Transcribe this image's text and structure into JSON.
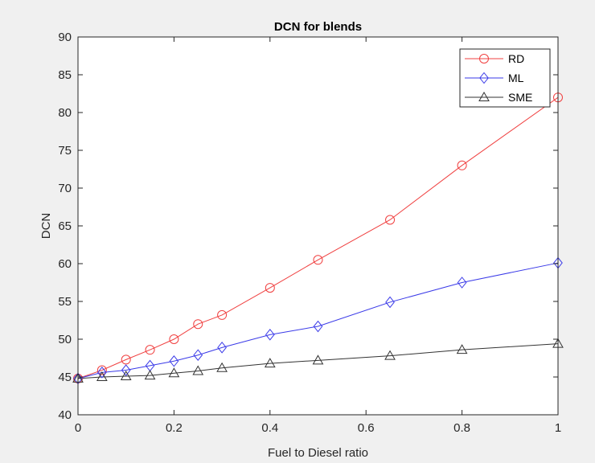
{
  "chart_data": {
    "type": "line",
    "title": "DCN for blends",
    "xlabel": "Fuel to Diesel ratio",
    "ylabel": "DCN",
    "xlim": [
      0,
      1
    ],
    "ylim": [
      40,
      90
    ],
    "xticks": [
      0,
      0.2,
      0.4,
      0.6,
      0.8,
      1
    ],
    "xtick_labels": [
      "0",
      "0.2",
      "0.4",
      "0.6",
      "0.8",
      "1"
    ],
    "yticks": [
      40,
      45,
      50,
      55,
      60,
      65,
      70,
      75,
      80,
      85,
      90
    ],
    "ytick_labels": [
      "40",
      "45",
      "50",
      "55",
      "60",
      "65",
      "70",
      "75",
      "80",
      "85",
      "90"
    ],
    "grid": false,
    "legend_position": "top-right",
    "x": [
      0,
      0.05,
      0.1,
      0.15,
      0.2,
      0.25,
      0.3,
      0.4,
      0.5,
      0.65,
      0.8,
      1
    ],
    "series": [
      {
        "name": "RD",
        "color": "#f04040",
        "marker": "circle",
        "values": [
          44.8,
          45.9,
          47.3,
          48.6,
          50.0,
          52.0,
          53.2,
          56.8,
          60.5,
          65.8,
          73.0,
          82.0
        ]
      },
      {
        "name": "ML",
        "color": "#3a3ae8",
        "marker": "diamond",
        "values": [
          44.8,
          45.6,
          45.9,
          46.5,
          47.1,
          47.9,
          48.9,
          50.6,
          51.7,
          54.9,
          57.5,
          60.1
        ]
      },
      {
        "name": "SME",
        "color": "#333333",
        "marker": "triangle",
        "values": [
          44.8,
          45.0,
          45.1,
          45.2,
          45.5,
          45.8,
          46.2,
          46.8,
          47.2,
          47.8,
          48.6,
          49.4
        ]
      }
    ]
  }
}
